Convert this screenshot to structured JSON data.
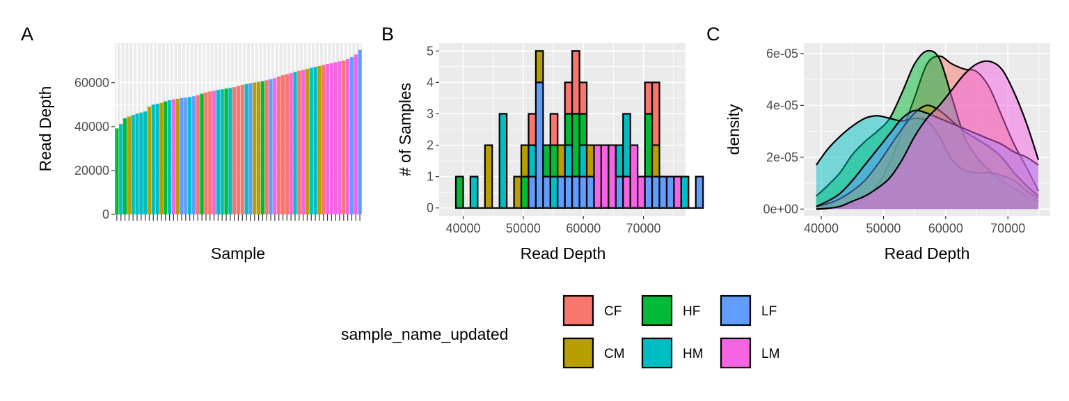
{
  "colors": {
    "CF": "#F8766D",
    "CM": "#B79F00",
    "HF": "#00BA38",
    "HM": "#00BFC4",
    "LF": "#619CFF",
    "LM": "#F564E3"
  },
  "legend": {
    "title": "sample_name_updated",
    "groups": [
      "CF",
      "HF",
      "LF",
      "CM",
      "HM",
      "LM"
    ]
  },
  "chart_data": [
    {
      "tag": "A",
      "type": "bar",
      "xlabel": "Sample",
      "ylabel": "Read Depth",
      "ylim": [
        0,
        78000
      ],
      "yticks": [
        0,
        20000,
        40000,
        60000
      ],
      "ytick_labels": [
        "0",
        "20000",
        "40000",
        "60000"
      ],
      "x_tick_labels_visible": false,
      "values": [
        39200,
        41200,
        43800,
        44600,
        45300,
        45900,
        46400,
        46900,
        49000,
        50000,
        50400,
        50800,
        51500,
        52000,
        52400,
        52700,
        53000,
        53200,
        53500,
        53800,
        54300,
        55000,
        55600,
        56000,
        56300,
        56700,
        57000,
        57300,
        57600,
        58000,
        58500,
        59000,
        59400,
        59800,
        60100,
        60400,
        60700,
        61100,
        61600,
        62100,
        62800,
        63400,
        63900,
        64400,
        64900,
        65400,
        65800,
        66300,
        66800,
        67200,
        67600,
        68100,
        68500,
        68900,
        69300,
        69700,
        70100,
        70700,
        71600,
        72800,
        74900
      ],
      "groups": [
        "HF",
        "HM",
        "HF",
        "CM",
        "HM",
        "HM",
        "HM",
        "HM",
        "CM",
        "HM",
        "HM",
        "CM",
        "HF",
        "HM",
        "LM",
        "CM",
        "LF",
        "LF",
        "HM",
        "LF",
        "CF",
        "HF",
        "CF",
        "CF",
        "LM",
        "HM",
        "HM",
        "HF",
        "HM",
        "CF",
        "CF",
        "CF",
        "HM",
        "LF",
        "CM",
        "CM",
        "HF",
        "CF",
        "LF",
        "LM",
        "CF",
        "CF",
        "CF",
        "LM",
        "HM",
        "CF",
        "LM",
        "CM",
        "HM",
        "HM",
        "CM",
        "CF",
        "LM",
        "LM",
        "LM",
        "LM",
        "CF",
        "LM",
        "LF",
        "LM",
        "LF"
      ]
    },
    {
      "tag": "B",
      "type": "bar",
      "subtype": "stacked-histogram",
      "xlabel": "Read Depth",
      "ylabel": "# of Samples",
      "xlim": [
        36000,
        77000
      ],
      "ylim": [
        -0.25,
        5.25
      ],
      "xticks": [
        40000,
        50000,
        60000,
        70000
      ],
      "xtick_labels": [
        "40000",
        "50000",
        "60000",
        "70000"
      ],
      "yticks": [
        0,
        1,
        2,
        3,
        4,
        5
      ],
      "ytick_labels": [
        "0",
        "1",
        "2",
        "3",
        "4",
        "5"
      ],
      "bin_start": 38780,
      "binwidth": 1210,
      "bins": [
        {
          "HF": 1
        },
        {},
        {
          "HM": 1
        },
        {},
        {
          "CM": 2
        },
        {},
        {
          "HM": 3
        },
        {},
        {
          "CM": 1
        },
        {
          "HF": 1,
          "CM": 1
        },
        {
          "LF": 1,
          "HM": 1,
          "CF": 1
        },
        {
          "LF": 4,
          "CM": 1
        },
        {
          "LF": 1,
          "HF": 1
        },
        {
          "HF": 1,
          "HM": 1,
          "CF": 1
        },
        {
          "LF": 1,
          "CM": 1
        },
        {
          "HF": 1,
          "LF": 1,
          "HM": 1,
          "CF": 1
        },
        {
          "LF": 1,
          "HF": 2,
          "CF": 2
        },
        {
          "HF": 1,
          "LF": 1,
          "HM": 1,
          "CF": 1
        },
        {
          "LF": 1,
          "CM": 1
        },
        {
          "LM": 2
        },
        {
          "LM": 2
        },
        {
          "LM": 2
        },
        {
          "LF": 1,
          "HM": 1
        },
        {
          "LM": 1,
          "HM": 2
        },
        {
          "LM": 2
        },
        {
          "LM": 1
        },
        {
          "LF": 1,
          "HF": 2,
          "CF": 1
        },
        {
          "LF": 1,
          "CM": 1,
          "CF": 2
        },
        {
          "LF": 1
        },
        {
          "LF": 1
        },
        {
          "LM": 1
        },
        {
          "HM": 1
        },
        {},
        {
          "LF": 1
        }
      ]
    },
    {
      "tag": "C",
      "type": "area",
      "subtype": "density",
      "xlabel": "Read Depth",
      "ylabel": "density",
      "xlim": [
        37200,
        76800
      ],
      "ylim": [
        -2.6e-06,
        6.4e-05
      ],
      "xticks": [
        40000,
        50000,
        60000,
        70000
      ],
      "xtick_labels": [
        "40000",
        "50000",
        "60000",
        "70000"
      ],
      "yticks": [
        0,
        2e-05,
        4e-05,
        6e-05
      ],
      "ytick_labels": [
        "0e+00",
        "2e-05",
        "4e-05",
        "6e-05"
      ],
      "x": [
        39200,
        41000,
        43000,
        45000,
        47000,
        49000,
        51000,
        53000,
        55000,
        57000,
        59000,
        61000,
        63000,
        65000,
        67000,
        69000,
        71000,
        73000,
        74900
      ],
      "series": [
        {
          "group": "CF",
          "values": [
            0.0,
            2e-07,
            7e-07,
            1.8e-06,
            4e-06,
            9e-06,
            1.8e-05,
            3e-05,
            4.3e-05,
            5.6e-05,
            5.9e-05,
            5.6e-05,
            5.4e-05,
            5.3e-05,
            4.7e-05,
            3.6e-05,
            2.5e-05,
            1.6e-05,
            7e-06
          ]
        },
        {
          "group": "HF",
          "values": [
            5e-06,
            9e-06,
            1.4e-05,
            2.1e-05,
            2.6e-05,
            3e-05,
            3.5e-05,
            4.5e-05,
            5.6e-05,
            6.1e-05,
            5.8e-05,
            4.3e-05,
            2.8e-05,
            2e-05,
            1.5e-05,
            1.1e-05,
            8e-06,
            5e-06,
            3e-06
          ]
        },
        {
          "group": "HM",
          "values": [
            1.7e-05,
            2.3e-05,
            2.8e-05,
            3.2e-05,
            3.5e-05,
            3.6e-05,
            3.5e-05,
            3.4e-05,
            3.5e-05,
            3.4e-05,
            2.8e-05,
            1.9e-05,
            1.5e-05,
            1.4e-05,
            1.4e-05,
            1.3e-05,
            1.1e-05,
            7e-06,
            4e-06
          ]
        },
        {
          "group": "CM",
          "values": [
            1e-06,
            2e-06,
            4e-06,
            7e-06,
            1.1e-05,
            1.7e-05,
            2.4e-05,
            3.1e-05,
            3.7e-05,
            4e-05,
            3.8e-05,
            3.4e-05,
            3e-05,
            2.7e-05,
            2.4e-05,
            2e-05,
            1.4e-05,
            9e-06,
            5e-06
          ]
        },
        {
          "group": "LF",
          "values": [
            1e-06,
            3e-06,
            6e-06,
            1.1e-05,
            1.7e-05,
            2.3e-05,
            2.9e-05,
            3.5e-05,
            3.8e-05,
            3.7e-05,
            3.5e-05,
            3.3e-05,
            3.1e-05,
            2.9e-05,
            2.7e-05,
            2.5e-05,
            2.2e-05,
            2e-05,
            1.7e-05
          ]
        },
        {
          "group": "LM",
          "values": [
            0.0,
            3e-07,
            1e-06,
            3e-06,
            5e-06,
            8e-06,
            1.2e-05,
            1.9e-05,
            2.8e-05,
            3.5e-05,
            4e-05,
            4.6e-05,
            5.2e-05,
            5.6e-05,
            5.7e-05,
            5.4e-05,
            4.5e-05,
            3.3e-05,
            1.9e-05
          ]
        }
      ]
    }
  ]
}
